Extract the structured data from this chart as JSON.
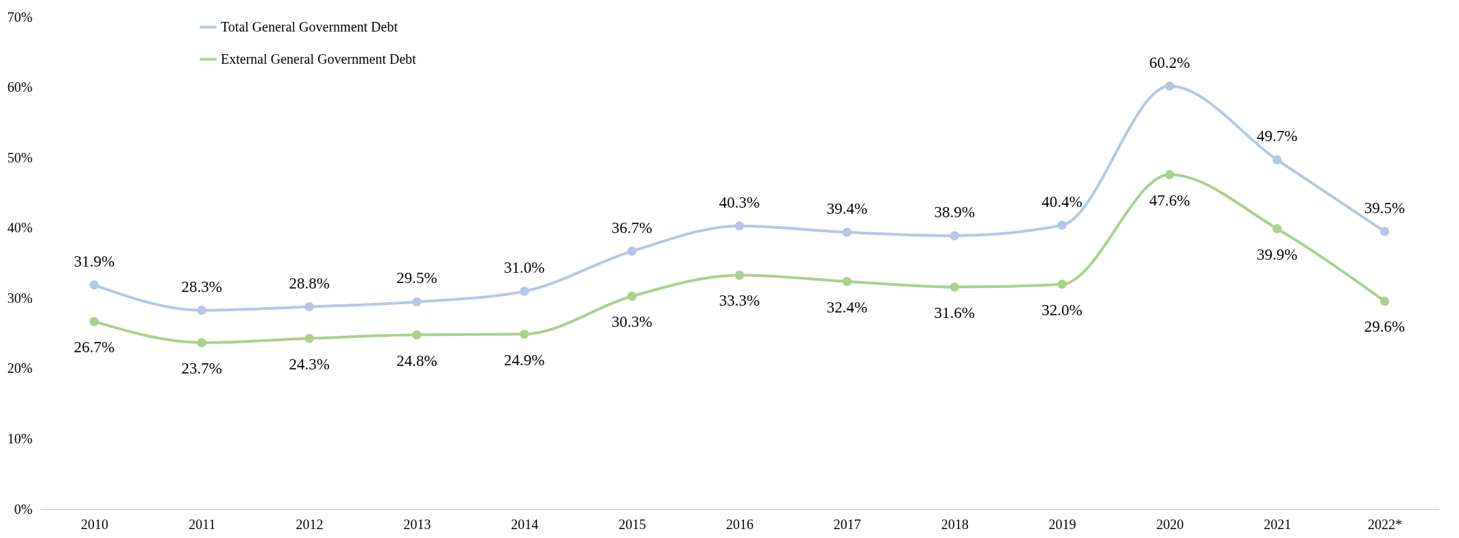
{
  "chart_data": {
    "type": "line",
    "categories": [
      "2010",
      "2011",
      "2012",
      "2013",
      "2014",
      "2015",
      "2016",
      "2017",
      "2018",
      "2019",
      "2020",
      "2021",
      "2022*"
    ],
    "series": [
      {
        "name": "Total General Government Debt",
        "color": "#b4c7e7",
        "values": [
          31.9,
          28.3,
          28.8,
          29.5,
          31.0,
          36.7,
          40.3,
          39.4,
          38.9,
          40.4,
          60.2,
          49.7,
          39.5
        ],
        "value_labels": [
          "31.9%",
          "28.3%",
          "28.8%",
          "29.5%",
          "31.0%",
          "36.7%",
          "40.3%",
          "39.4%",
          "38.9%",
          "40.4%",
          "60.2%",
          "49.7%",
          "39.5%"
        ]
      },
      {
        "name": "External General Government Debt",
        "color": "#a9d18e",
        "values": [
          26.7,
          23.7,
          24.3,
          24.8,
          24.9,
          30.3,
          33.3,
          32.4,
          31.6,
          32.0,
          47.6,
          39.9,
          29.6
        ],
        "value_labels": [
          "26.7%",
          "23.7%",
          "24.3%",
          "24.8%",
          "24.9%",
          "30.3%",
          "33.3%",
          "32.4%",
          "31.6%",
          "32.0%",
          "47.6%",
          "39.9%",
          "29.6%"
        ]
      }
    ],
    "ylim": [
      0,
      70
    ],
    "yticks": [
      {
        "value": 0,
        "label": "0%"
      },
      {
        "value": 10,
        "label": "10%"
      },
      {
        "value": 20,
        "label": "20%"
      },
      {
        "value": 30,
        "label": "30%"
      },
      {
        "value": 40,
        "label": "40%"
      },
      {
        "value": 50,
        "label": "50%"
      },
      {
        "value": 60,
        "label": "60%"
      },
      {
        "value": 70,
        "label": "70%"
      }
    ],
    "grid": false,
    "legend": "top left",
    "marker": "circle",
    "line_style": "solid"
  }
}
